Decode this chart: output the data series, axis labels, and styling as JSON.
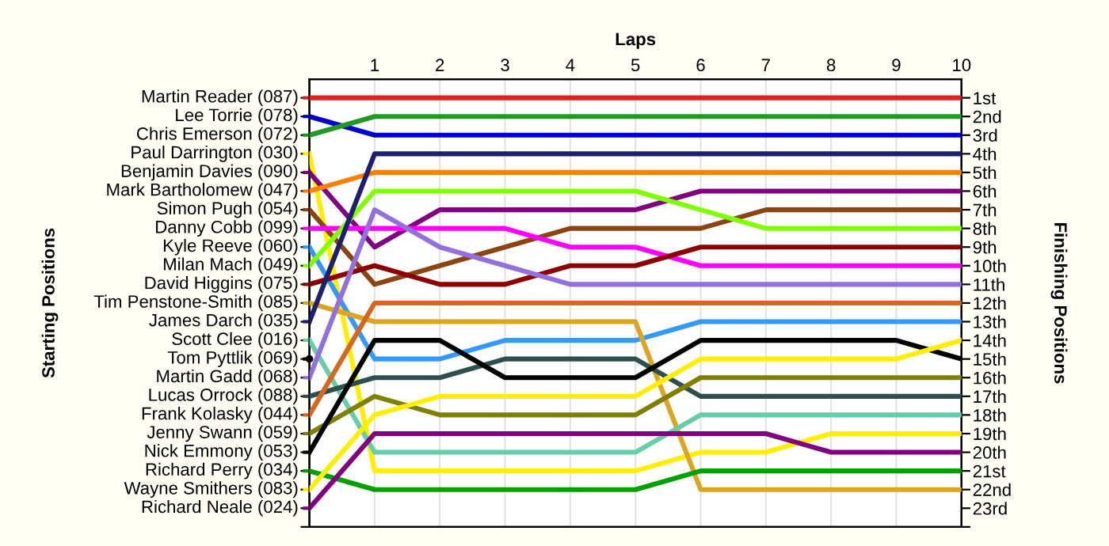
{
  "chart_data": {
    "type": "line",
    "xlabel": "Laps",
    "y2label": "Finishing Positions",
    "x": [
      0,
      1,
      2,
      3,
      4,
      5,
      6,
      7,
      8,
      9,
      10
    ],
    "xlim": [
      0,
      10
    ],
    "xticks": [
      {
        "value": 0,
        "label": null
      },
      1,
      2,
      3,
      4,
      5,
      6,
      7,
      8,
      9,
      10
    ],
    "y2lim": [
      24,
      0
    ],
    "y2ticks": [
      {
        "value": 1,
        "label": "1st"
      },
      {
        "value": 2,
        "label": "2nd"
      },
      {
        "value": 3,
        "label": "3rd"
      },
      {
        "value": 4,
        "label": "4th"
      },
      {
        "value": 5,
        "label": "5th"
      },
      {
        "value": 6,
        "label": "6th"
      },
      {
        "value": 7,
        "label": "7th"
      },
      {
        "value": 8,
        "label": "8th"
      },
      {
        "value": 9,
        "label": "9th"
      },
      {
        "value": 10,
        "label": "10th"
      },
      {
        "value": 11,
        "label": "11th"
      },
      {
        "value": 12,
        "label": "12th"
      },
      {
        "value": 13,
        "label": "13th"
      },
      {
        "value": 14,
        "label": "14th"
      },
      {
        "value": 15,
        "label": "15th"
      },
      {
        "value": 16,
        "label": "16th"
      },
      {
        "value": 17,
        "label": "17th"
      },
      {
        "value": 18,
        "label": "18th"
      },
      {
        "value": 19,
        "label": "19th"
      },
      {
        "value": 20,
        "label": "20th"
      },
      {
        "value": 21,
        "label": "21st"
      },
      {
        "value": 22,
        "label": "22nd"
      },
      {
        "value": 23,
        "label": "23rd"
      },
      {
        "value": 24,
        "label": null
      }
    ],
    "grid": true,
    "legend": "left",
    "marker": "none",
    "line_style": "solid",
    "annotations": [
      "Starting Positions"
    ],
    "series": [
      {
        "name": "Martin Reader (087)",
        "axis": "y2",
        "color": "#dd2222",
        "values": [
          1,
          1,
          1,
          1,
          1,
          1,
          1,
          1,
          1,
          1,
          1
        ]
      },
      {
        "name": "Lee Torrie (078)",
        "axis": "y2",
        "color": "#0000cc",
        "values": [
          2,
          3,
          3,
          3,
          3,
          3,
          3,
          3,
          3,
          3,
          3
        ]
      },
      {
        "name": "Chris Emerson (072)",
        "axis": "y2",
        "color": "#229922",
        "values": [
          3,
          2,
          2,
          2,
          2,
          2,
          2,
          2,
          2,
          2,
          2
        ]
      },
      {
        "name": "Paul Darrington (030)",
        "axis": "y2",
        "color": "#ffee00",
        "values": [
          4,
          21,
          21,
          21,
          21,
          21,
          20,
          20,
          19,
          19,
          19
        ]
      },
      {
        "name": "Benjamin Davies (090)",
        "axis": "y2",
        "color": "#800080",
        "values": [
          5,
          9,
          7,
          7,
          7,
          7,
          6,
          6,
          6,
          6,
          6
        ]
      },
      {
        "name": "Mark Bartholomew (047)",
        "axis": "y2",
        "color": "#ff8000",
        "values": [
          6,
          5,
          5,
          5,
          5,
          5,
          5,
          5,
          5,
          5,
          5
        ]
      },
      {
        "name": "Simon Pugh (054)",
        "axis": "y2",
        "color": "#8b4513",
        "values": [
          7,
          11,
          10,
          9,
          8,
          8,
          8,
          7,
          7,
          7,
          7
        ]
      },
      {
        "name": "Danny Cobb (099)",
        "axis": "y2",
        "color": "#ff00ff",
        "values": [
          8,
          8,
          8,
          8,
          9,
          9,
          10,
          10,
          10,
          10,
          10
        ]
      },
      {
        "name": "Kyle Reeve (060)",
        "axis": "y2",
        "color": "#3399ff",
        "values": [
          9,
          15,
          15,
          14,
          14,
          14,
          13,
          13,
          13,
          13,
          13
        ]
      },
      {
        "name": "Milan Mach (049)",
        "axis": "y2",
        "color": "#80ff00",
        "values": [
          10,
          6,
          6,
          6,
          6,
          6,
          7,
          8,
          8,
          8,
          8
        ]
      },
      {
        "name": "David Higgins (075)",
        "axis": "y2",
        "color": "#8b0000",
        "values": [
          11,
          10,
          11,
          11,
          10,
          10,
          9,
          9,
          9,
          9,
          9
        ]
      },
      {
        "name": "Tim Penstone-Smith (085)",
        "axis": "y2",
        "color": "#daa520",
        "values": [
          12,
          13,
          13,
          13,
          13,
          13,
          22,
          22,
          22,
          22,
          22
        ]
      },
      {
        "name": "James Darch (035)",
        "axis": "y2",
        "color": "#1f1f6f",
        "values": [
          13,
          4,
          4,
          4,
          4,
          4,
          4,
          4,
          4,
          4,
          4
        ]
      },
      {
        "name": "Scott Clee (016)",
        "axis": "y2",
        "color": "#66cdaa",
        "values": [
          14,
          20,
          20,
          20,
          20,
          20,
          18,
          18,
          18,
          18,
          18
        ]
      },
      {
        "name": "Tom Pyttlik (069)",
        "axis": "y2",
        "values": [
          15,
          null,
          null,
          null,
          null,
          null,
          null,
          null,
          null,
          null,
          null
        ]
      },
      {
        "name": "Martin Gadd (068)",
        "axis": "y2",
        "color": "#9370db",
        "values": [
          16,
          7,
          9,
          10,
          11,
          11,
          11,
          11,
          11,
          11,
          11
        ]
      },
      {
        "name": "Lucas Orrock (088)",
        "axis": "y2",
        "color": "#2f4f4f",
        "values": [
          17,
          16,
          16,
          15,
          15,
          15,
          17,
          17,
          17,
          17,
          17
        ]
      },
      {
        "name": "Frank Kolasky (044)",
        "axis": "y2",
        "color": "#d2691e",
        "values": [
          18,
          12,
          12,
          12,
          12,
          12,
          12,
          12,
          12,
          12,
          12
        ]
      },
      {
        "name": "Jenny Swann (059)",
        "axis": "y2",
        "color": "#808000",
        "values": [
          19,
          17,
          18,
          18,
          18,
          18,
          16,
          16,
          16,
          16,
          16
        ]
      },
      {
        "name": "Nick Emmony (053)",
        "axis": "y2",
        "color": "#000000",
        "values": [
          20,
          14,
          14,
          16,
          16,
          16,
          14,
          14,
          14,
          14,
          15
        ]
      },
      {
        "name": "Richard Perry (034)",
        "axis": "y2",
        "color": "#00a000",
        "values": [
          21,
          22,
          22,
          22,
          22,
          22,
          21,
          21,
          21,
          21,
          21
        ]
      },
      {
        "name": "Wayne Smithers (083)",
        "axis": "y2",
        "color": "#ffee00",
        "values": [
          22,
          18,
          17,
          17,
          17,
          17,
          15,
          15,
          15,
          15,
          14
        ]
      },
      {
        "name": "Richard Neale (024)",
        "axis": "y2",
        "color": "#800080",
        "values": [
          23,
          19,
          19,
          19,
          19,
          19,
          19,
          19,
          20,
          20,
          20
        ]
      }
    ]
  }
}
